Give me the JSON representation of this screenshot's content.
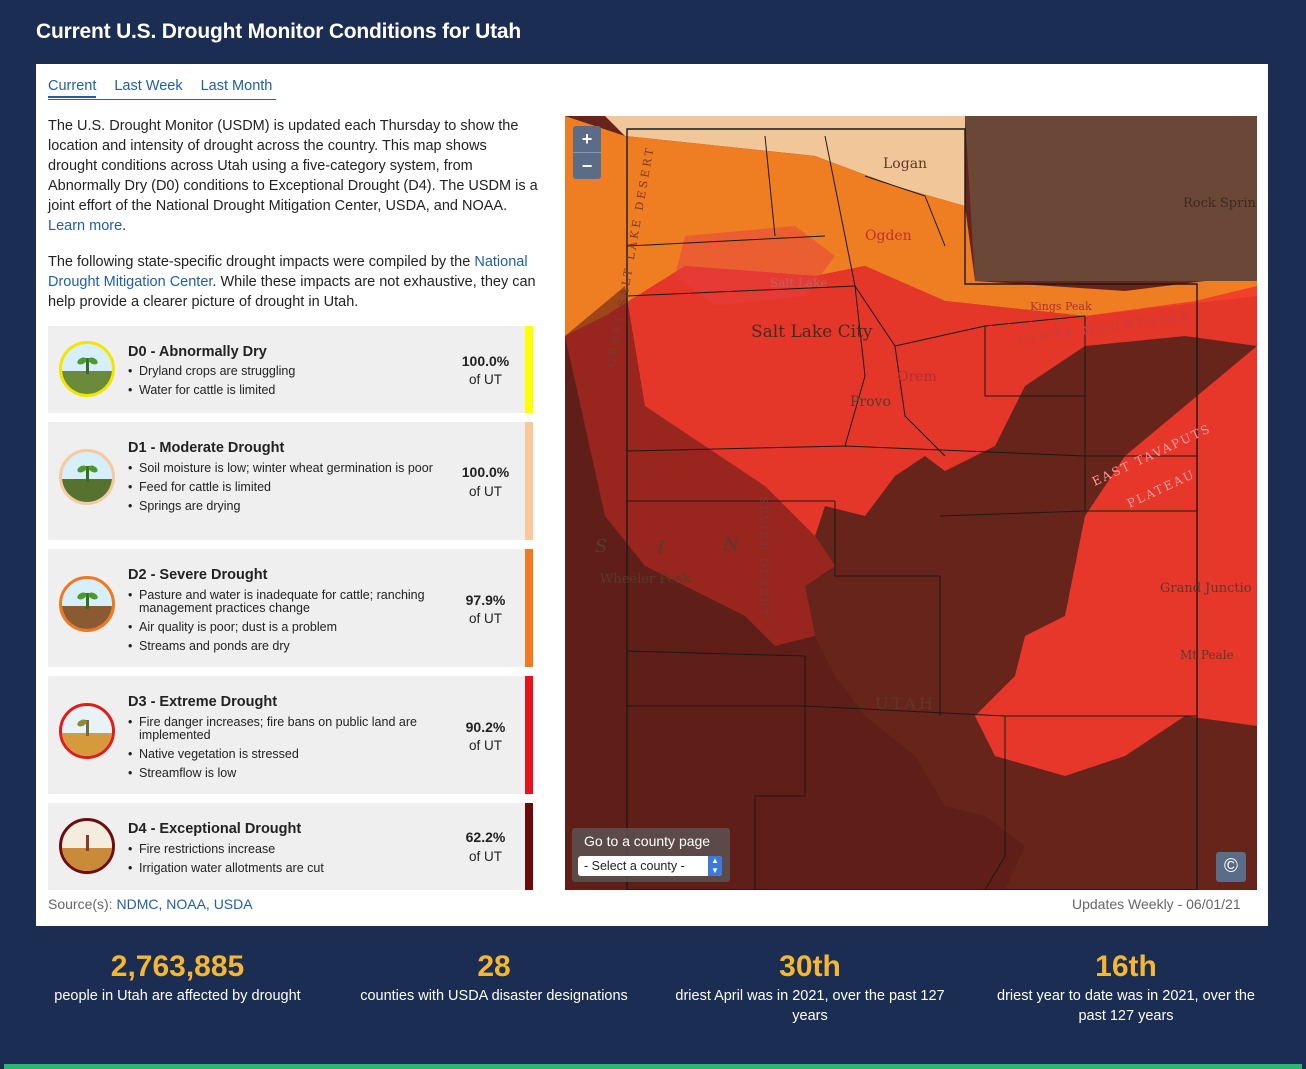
{
  "header": {
    "title": "Current U.S. Drought Monitor Conditions for Utah"
  },
  "tabs": [
    {
      "label": "Current",
      "active": true
    },
    {
      "label": "Last Week",
      "active": false
    },
    {
      "label": "Last Month",
      "active": false
    }
  ],
  "intro": {
    "p1": "The U.S. Drought Monitor (USDM) is updated each Thursday to show the location and intensity of drought across the country. This map shows drought conditions across Utah using a five-category system, from Abnormally Dry (D0) conditions to Exceptional Drought (D4). The USDM is a joint effort of the National Drought Mitigation Center, USDA, and NOAA.",
    "learn_more": "Learn more",
    "p2_start": "The following state-specific drought impacts were compiled by the",
    "p2_link": "National Drought Mitigation Center",
    "p2_end": ". While these impacts are not exhaustive, they can help provide a clearer picture of drought in Utah."
  },
  "categories": [
    {
      "title": "D0 - Abnormally Dry",
      "impacts": [
        "Dryland crops are struggling",
        "Water for cattle is limited"
      ],
      "percent": "100.0%",
      "of": "of UT",
      "color": "#ffff00",
      "icon": "sprout-icon"
    },
    {
      "title": "D1 - Moderate Drought",
      "impacts": [
        "Soil moisture is low; winter wheat germination is poor",
        "Feed for cattle is limited",
        "Springs are drying"
      ],
      "percent": "100.0%",
      "of": "of UT",
      "color": "#fcd37f",
      "icon": "sprout-icon"
    },
    {
      "title": "D2 - Severe Drought",
      "impacts": [
        "Pasture and water is inadequate for cattle; ranching management practices change",
        "Air quality is poor; dust is a problem",
        "Streams and ponds are dry"
      ],
      "percent": "97.9%",
      "of": "of UT",
      "color": "#ffaa00",
      "icon": "wilting-sprout-icon"
    },
    {
      "title": "D3 - Extreme Drought",
      "impacts": [
        "Fire danger increases; fire bans on public land are implemented",
        "Native vegetation is stressed",
        "Streamflow is low"
      ],
      "percent": "90.2%",
      "of": "of UT",
      "color": "#e60000",
      "icon": "cracked-ground-icon"
    },
    {
      "title": "D4 - Exceptional Drought",
      "impacts": [
        "Fire restrictions increase",
        "Irrigation water allotments are cut"
      ],
      "percent": "62.2%",
      "of": "of UT",
      "color": "#730000",
      "icon": "dead-plant-icon"
    }
  ],
  "sources": {
    "label": "Source(s):",
    "links": "NDMC, NOAA, USDA"
  },
  "updates": "Updates Weekly  -  06/01/21",
  "map": {
    "zoom_in": "+",
    "zoom_out": "−",
    "county_label": "Go to a county page",
    "county_select": "- Select a county -",
    "copyright": "©",
    "labels": {
      "logan": "Logan",
      "ogden": "Ogden",
      "salt_lake_city": "Salt Lake City",
      "salt_lake": "Salt Lake",
      "orem": "Orem",
      "provo": "Provo",
      "wheeler_peak": "Wheeler Peak",
      "utah": "UTAH",
      "rock_springs": "Rock Sprin",
      "grand_junction": "Grand Junctio",
      "kings_peak": "Kings Peak",
      "great_salt_lake_desert": "GREAT SALT LAKE DESERT",
      "sevier_desert": "SEVIER DESERT",
      "east_tavaputs": "EAST TAVAPUTS",
      "plateau": "PLATEAU",
      "uinta_mountains": "UINTA MOUNTAINS",
      "basin_s": "S",
      "basin_i": "I",
      "basin_n": "N",
      "mt_peale": "Mt Peale"
    }
  },
  "stats": [
    {
      "number": "2,763,885",
      "text": "people in Utah are affected by drought"
    },
    {
      "number": "28",
      "text": "counties with USDA disaster designations"
    },
    {
      "number": "30th",
      "text": "driest April was in 2021, over the past 127 years"
    },
    {
      "number": "16th",
      "text": "driest year to date was in 2021, over the past 127 years"
    }
  ]
}
